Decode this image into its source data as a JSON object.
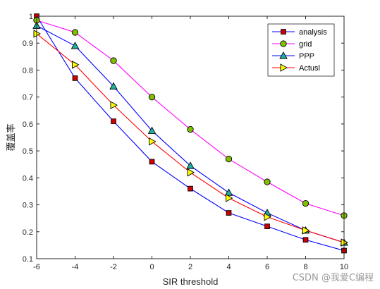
{
  "chart_data": {
    "type": "line",
    "title": "",
    "xlabel": "SIR threshold",
    "ylabel": "覆盖率",
    "xlim": [
      -6,
      10
    ],
    "ylim": [
      0.1,
      1.0
    ],
    "xticks": [
      -6,
      -4,
      -2,
      0,
      2,
      4,
      6,
      8,
      10
    ],
    "yticks": [
      0.1,
      0.2,
      0.3,
      0.4,
      0.5,
      0.6,
      0.7,
      0.8,
      0.9,
      1.0
    ],
    "xtick_labels": [
      "-6",
      "-4",
      "-2",
      "0",
      "2",
      "4",
      "6",
      "8",
      "10"
    ],
    "ytick_labels": [
      "0.1",
      "0.2",
      "0.3",
      "0.4",
      "0.5",
      "0.6",
      "0.7",
      "0.8",
      "0.9",
      "1"
    ],
    "grid": false,
    "legend_position": "top-right",
    "x": [
      -6,
      -4,
      -2,
      0,
      2,
      4,
      6,
      8,
      10
    ],
    "series": [
      {
        "name": "analysis",
        "values": [
          1.0,
          0.77,
          0.61,
          0.46,
          0.36,
          0.27,
          0.22,
          0.17,
          0.13
        ],
        "line_color": "#0000ff",
        "marker": "square",
        "marker_color": "#cc0000"
      },
      {
        "name": "grid",
        "values": [
          0.985,
          0.94,
          0.835,
          0.7,
          0.58,
          0.47,
          0.385,
          0.305,
          0.26
        ],
        "line_color": "#ff00ff",
        "marker": "circle",
        "marker_color": "#80c000"
      },
      {
        "name": "PPP",
        "values": [
          0.965,
          0.89,
          0.74,
          0.575,
          0.445,
          0.345,
          0.27,
          0.205,
          0.16
        ],
        "line_color": "#0000ff",
        "marker": "triangle",
        "marker_color": "#20b0a0"
      },
      {
        "name": "Actusl",
        "values": [
          0.935,
          0.82,
          0.67,
          0.535,
          0.42,
          0.325,
          0.255,
          0.205,
          0.16
        ],
        "line_color": "#ff0000",
        "marker": "triangle-right",
        "marker_color": "#ffff00"
      }
    ]
  },
  "watermark": "CSDN @我爱C编程"
}
